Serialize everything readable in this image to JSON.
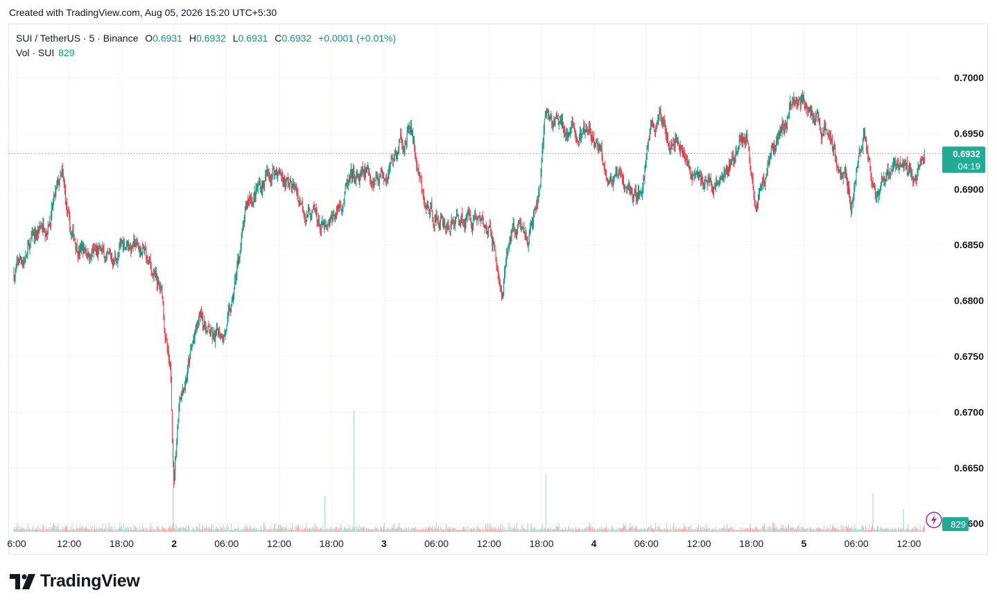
{
  "attribution": "Created with TradingView.com, Aug 05, 2026 15:20 UTC+5:30",
  "legend": {
    "symbol": "SUI / TetherUS · 5 · Binance",
    "open_label": "O",
    "open": "0.6931",
    "high_label": "H",
    "high": "0.6932",
    "low_label": "L",
    "low": "0.6931",
    "close_label": "C",
    "close": "0.6932",
    "change": "+0.0001 (+0.01%)",
    "vol_label": "Vol · SUI",
    "vol": "829"
  },
  "colors": {
    "up": "#089981",
    "down": "#f23645",
    "vol_up": "#a7dcd3",
    "vol_down": "#f7a9a7",
    "grid": "#f0f3fa",
    "accent": "#22ab94"
  },
  "last_price": {
    "value": "0.6932",
    "countdown": "04:19"
  },
  "last_volume": "829",
  "icons": {
    "volume_badge": "lightning-icon",
    "brand": "tradingview-logo"
  },
  "brand": "TradingView",
  "chart_data": {
    "type": "candlestick",
    "interval_minutes": 5,
    "y_ticks": [
      "0.7000",
      "0.6950",
      "0.6900",
      "0.6850",
      "0.6800",
      "0.6750",
      "0.6700",
      "0.6650",
      "0.6600"
    ],
    "ylim": [
      0.66,
      0.7
    ],
    "x_ticks": [
      "6:00",
      "12:00",
      "18:00",
      "2",
      "06:00",
      "12:00",
      "18:00",
      "3",
      "06:00",
      "12:00",
      "18:00",
      "4",
      "06:00",
      "12:00",
      "18:00",
      "5",
      "06:00",
      "12:00"
    ],
    "x_ticks_bold": [
      "2",
      "3",
      "4",
      "5"
    ],
    "price_path": [
      {
        "t": "Aug 01 06:00",
        "p": 0.6825
      },
      {
        "t": "Aug 01 09:00",
        "p": 0.6862
      },
      {
        "t": "Aug 01 11:30",
        "p": 0.6905
      },
      {
        "t": "Aug 01 12:30",
        "p": 0.6852
      },
      {
        "t": "Aug 01 15:00",
        "p": 0.6845
      },
      {
        "t": "Aug 01 17:00",
        "p": 0.683
      },
      {
        "t": "Aug 01 19:00",
        "p": 0.6855
      },
      {
        "t": "Aug 01 21:00",
        "p": 0.684
      },
      {
        "t": "Aug 01 23:00",
        "p": 0.68
      },
      {
        "t": "Aug 02 00:00",
        "p": 0.672
      },
      {
        "t": "Aug 02 00:20",
        "p": 0.664
      },
      {
        "t": "Aug 02 01:00",
        "p": 0.672
      },
      {
        "t": "Aug 02 03:30",
        "p": 0.6785
      },
      {
        "t": "Aug 02 05:00",
        "p": 0.676
      },
      {
        "t": "Aug 02 07:00",
        "p": 0.679
      },
      {
        "t": "Aug 02 08:00",
        "p": 0.685
      },
      {
        "t": "Aug 02 09:00",
        "p": 0.689
      },
      {
        "t": "Aug 02 12:00",
        "p": 0.692
      },
      {
        "t": "Aug 02 16:00",
        "p": 0.688
      },
      {
        "t": "Aug 02 18:00",
        "p": 0.6855
      },
      {
        "t": "Aug 02 20:00",
        "p": 0.69
      },
      {
        "t": "Aug 02 23:00",
        "p": 0.691
      },
      {
        "t": "Aug 03 02:00",
        "p": 0.6935
      },
      {
        "t": "Aug 03 03:30",
        "p": 0.6955
      },
      {
        "t": "Aug 03 05:00",
        "p": 0.688
      },
      {
        "t": "Aug 03 08:00",
        "p": 0.687
      },
      {
        "t": "Aug 03 11:00",
        "p": 0.688
      },
      {
        "t": "Aug 03 13:00",
        "p": 0.685
      },
      {
        "t": "Aug 03 14:00",
        "p": 0.68
      },
      {
        "t": "Aug 03 15:00",
        "p": 0.686
      },
      {
        "t": "Aug 03 17:00",
        "p": 0.686
      },
      {
        "t": "Aug 03 18:00",
        "p": 0.688
      },
      {
        "t": "Aug 03 19:00",
        "p": 0.696
      },
      {
        "t": "Aug 04 00:00",
        "p": 0.6945
      },
      {
        "t": "Aug 04 04:00",
        "p": 0.6895
      },
      {
        "t": "Aug 04 06:00",
        "p": 0.6895
      },
      {
        "t": "Aug 04 07:00",
        "p": 0.696
      },
      {
        "t": "Aug 04 10:00",
        "p": 0.6955
      },
      {
        "t": "Aug 04 12:00",
        "p": 0.691
      },
      {
        "t": "Aug 04 15:00",
        "p": 0.6905
      },
      {
        "t": "Aug 04 18:00",
        "p": 0.695
      },
      {
        "t": "Aug 04 19:00",
        "p": 0.6885
      },
      {
        "t": "Aug 04 21:00",
        "p": 0.694
      },
      {
        "t": "Aug 05 00:00",
        "p": 0.699
      },
      {
        "t": "Aug 05 02:00",
        "p": 0.6955
      },
      {
        "t": "Aug 05 04:00",
        "p": 0.6945
      },
      {
        "t": "Aug 05 06:00",
        "p": 0.6895
      },
      {
        "t": "Aug 05 07:30",
        "p": 0.695
      },
      {
        "t": "Aug 05 09:00",
        "p": 0.688
      },
      {
        "t": "Aug 05 11:00",
        "p": 0.6925
      },
      {
        "t": "Aug 05 13:00",
        "p": 0.6905
      },
      {
        "t": "Aug 05 14:30",
        "p": 0.6932
      }
    ],
    "volume_spikes": [
      {
        "t": "Aug 02 00:15",
        "rel": 0.35
      },
      {
        "t": "Aug 02 17:40",
        "rel": 0.28
      },
      {
        "t": "Aug 02 21:00",
        "rel": 0.95
      },
      {
        "t": "Aug 03 19:00",
        "rel": 0.45
      },
      {
        "t": "Aug 05 08:30",
        "rel": 0.3
      },
      {
        "t": "Aug 05 12:00",
        "rel": 0.18
      }
    ]
  }
}
